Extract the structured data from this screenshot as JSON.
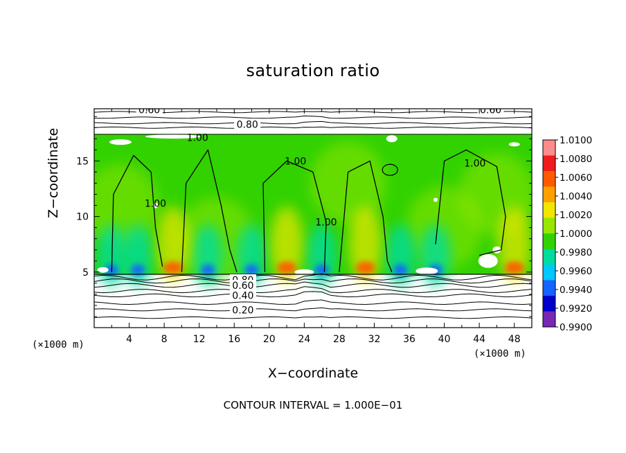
{
  "chart_data": {
    "type": "heatmap",
    "title": "saturation ratio",
    "xlabel": "X−coordinate",
    "ylabel": "Z−coordinate",
    "x_unit_left": "(×1000 m)",
    "x_unit_right": "(×1000 m)",
    "footer": "CONTOUR INTERVAL = 1.000E−01",
    "xlim": [
      0,
      50
    ],
    "ylim": [
      0,
      19.7
    ],
    "x_ticks": [
      4,
      8,
      12,
      16,
      20,
      24,
      28,
      32,
      36,
      40,
      44,
      48
    ],
    "y_ticks": [
      5,
      10,
      15
    ],
    "colorbar": {
      "levels": [
        "1.0100",
        "1.0080",
        "1.0060",
        "1.0040",
        "1.0020",
        "1.0000",
        "0.9980",
        "0.9960",
        "0.9940",
        "0.9920",
        "0.9900"
      ],
      "colors": [
        "#ff8c8c",
        "#ee1c1c",
        "#ff5a00",
        "#ffa000",
        "#f0e600",
        "#96e600",
        "#32d200",
        "#00dca0",
        "#00c8ff",
        "#1464ff",
        "#0000c8",
        "#7828b4"
      ]
    },
    "contour_labels": [
      {
        "text": "0.60",
        "x": 6.3,
        "z": 19.6
      },
      {
        "text": "0.60",
        "x": 45.3,
        "z": 19.6
      },
      {
        "text": "0.80",
        "x": 17.5,
        "z": 18.3
      },
      {
        "text": "1.00",
        "x": 11.8,
        "z": 17.1
      },
      {
        "text": "1.00",
        "x": 23.0,
        "z": 15.0
      },
      {
        "text": "1.00",
        "x": 43.5,
        "z": 14.8
      },
      {
        "text": "1.00",
        "x": 7.0,
        "z": 11.2
      },
      {
        "text": "1.00",
        "x": 26.5,
        "z": 9.5
      },
      {
        "text": "0.80",
        "x": 17.0,
        "z": 4.3
      },
      {
        "text": "0.60",
        "x": 17.0,
        "z": 3.8
      },
      {
        "text": "0.40",
        "x": 17.0,
        "z": 2.9
      },
      {
        "text": "0.20",
        "x": 17.0,
        "z": 1.6
      }
    ],
    "regions": {
      "lower_contours_z": [
        0.9,
        1.6,
        2.2,
        2.9,
        3.3,
        3.8,
        4.2,
        4.5
      ],
      "upper_contours_z": [
        18.0,
        18.4,
        18.9,
        19.4
      ],
      "colored_layer_z": [
        4.8,
        17.4
      ],
      "warm_spots_x": [
        9,
        22,
        31,
        48
      ],
      "cool_spots_x": [
        2,
        5,
        13,
        18,
        26,
        35,
        39
      ]
    }
  }
}
